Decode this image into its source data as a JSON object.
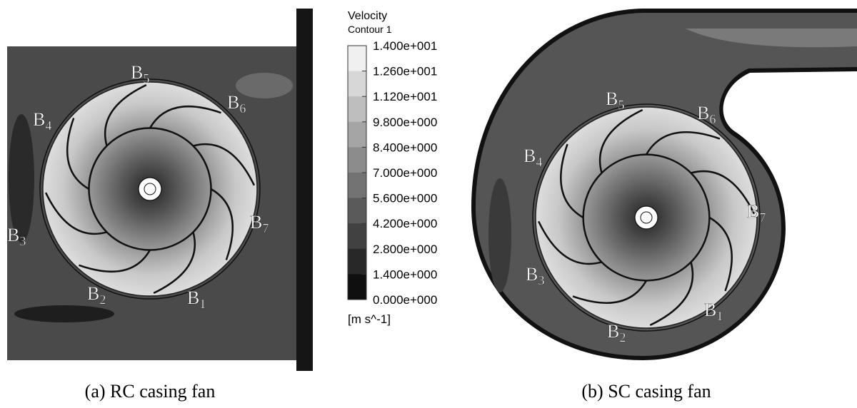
{
  "legend": {
    "title": "Velocity",
    "subtitle": "Contour 1",
    "levels": [
      "1.400e+001",
      "1.260e+001",
      "1.120e+001",
      "9.800e+000",
      "8.400e+000",
      "7.000e+000",
      "5.600e+000",
      "4.200e+000",
      "2.800e+000",
      "1.400e+000",
      "0.000e+000"
    ],
    "unit": "[m s^-1]"
  },
  "panels": [
    {
      "caption": "(a) RC casing fan",
      "blades": [
        {
          "letter": "B",
          "index": "5"
        },
        {
          "letter": "B",
          "index": "6"
        },
        {
          "letter": "B",
          "index": "4"
        },
        {
          "letter": "B",
          "index": "3"
        },
        {
          "letter": "B",
          "index": "7"
        },
        {
          "letter": "B",
          "index": "2"
        },
        {
          "letter": "B",
          "index": "1"
        }
      ]
    },
    {
      "caption": "(b) SC casing fan",
      "blades": [
        {
          "letter": "B",
          "index": "5"
        },
        {
          "letter": "B",
          "index": "6"
        },
        {
          "letter": "B",
          "index": "4"
        },
        {
          "letter": "B",
          "index": "7"
        },
        {
          "letter": "B",
          "index": "3"
        },
        {
          "letter": "B",
          "index": "1"
        },
        {
          "letter": "B",
          "index": "2"
        }
      ]
    }
  ]
}
